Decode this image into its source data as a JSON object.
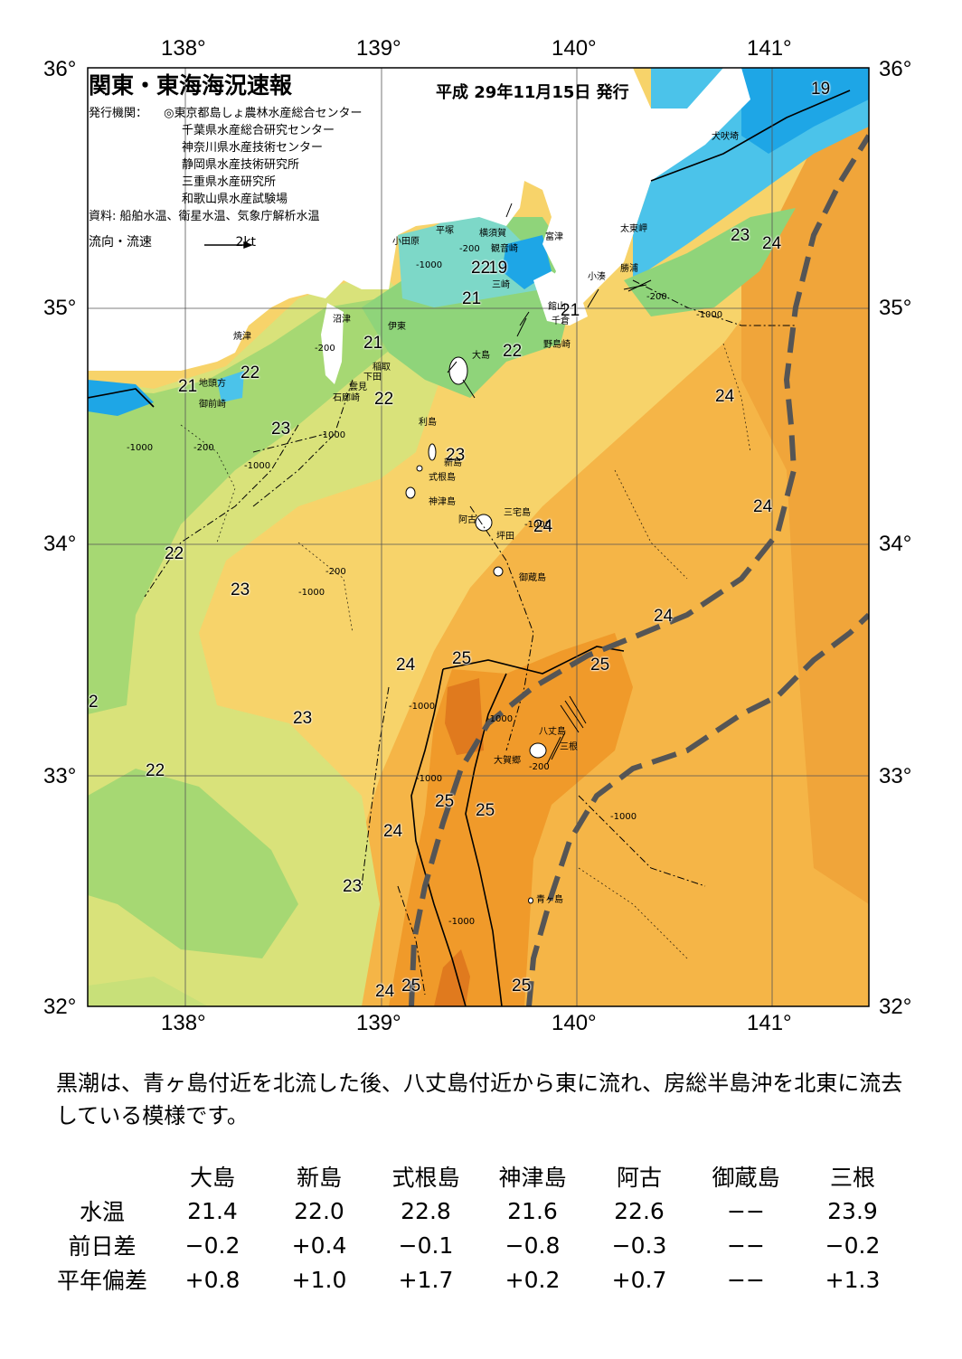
{
  "header": {
    "title": "関東・東海海況速報",
    "date": "平成 29年11月15日 発行",
    "issuer_label": "発行機関：",
    "issuers": [
      "◎東京都島しょ農林水産総合センター",
      "千葉県水産総合研究センター",
      "神奈川県水産技術センター",
      "静岡県水産技術研究所",
      "三重県水産研究所",
      "和歌山県水産試験場"
    ],
    "source": "資料: 船舶水温、衛星水温、気象庁解析水温",
    "flow_legend": "流向・流速",
    "flow_scale": "2kt"
  },
  "axes": {
    "lon": [
      "138°",
      "139°",
      "140°",
      "141°"
    ],
    "lat": [
      "36°",
      "35°",
      "34°",
      "33°",
      "32°"
    ]
  },
  "contour_labels": [
    "19",
    "19",
    "23",
    "24",
    "21",
    "21",
    "21",
    "22",
    "21",
    "22",
    "22",
    "22",
    "24",
    "23",
    "23",
    "24",
    "22",
    "23",
    "24",
    "24",
    "24",
    "25",
    "25",
    "2",
    "23",
    "22",
    "25",
    "25",
    "24",
    "23",
    "24",
    "25",
    "25"
  ],
  "depth_labels": [
    "-1000",
    "-200"
  ],
  "place_names": [
    "犬吠埼",
    "太東岬",
    "勝浦",
    "小湊",
    "館山",
    "千倉",
    "野島崎",
    "富津",
    "観音崎",
    "横須賀",
    "平塚",
    "三崎",
    "小田原",
    "沼津",
    "伊東",
    "稲取",
    "下田",
    "雲見",
    "石廊崎",
    "焼津",
    "地頭方",
    "御前崎",
    "大島",
    "利島",
    "新島",
    "式根島",
    "神津島",
    "三宅島",
    "阿古",
    "坪田",
    "御蔵島",
    "八丈島",
    "三根",
    "大賀郷",
    "青ヶ島"
  ],
  "summary": "黒潮は、青ヶ島付近を北流した後、八丈島付近から東に流れ、房総半島沖を北東に流去している模様です。",
  "table": {
    "columns": [
      "大島",
      "新島",
      "式根島",
      "神津島",
      "阿古",
      "御蔵島",
      "三根"
    ],
    "rows": [
      {
        "label": "水温",
        "values": [
          "21.4",
          "22.0",
          "22.8",
          "21.6",
          "22.6",
          "−−",
          "23.9"
        ]
      },
      {
        "label": "前日差",
        "values": [
          "−0.2",
          "+0.4",
          "−0.1",
          "−0.8",
          "−0.3",
          "−−",
          "−0.2"
        ]
      },
      {
        "label": "平年偏差",
        "values": [
          "+0.8",
          "+1.0",
          "+1.7",
          "+0.2",
          "+0.7",
          "−−",
          "+1.3"
        ]
      }
    ]
  },
  "colors": {
    "t19": "#1ea6e6",
    "t20": "#4bc3ea",
    "t21": "#7dd8c8",
    "t22": "#8fd47a",
    "t23": "#d9e27a",
    "t24": "#f7d36a",
    "t24b": "#f5b547",
    "t25": "#f09a2a",
    "t26": "#e07a1e",
    "land": "#ffffff",
    "kuroshio": "#555555"
  }
}
